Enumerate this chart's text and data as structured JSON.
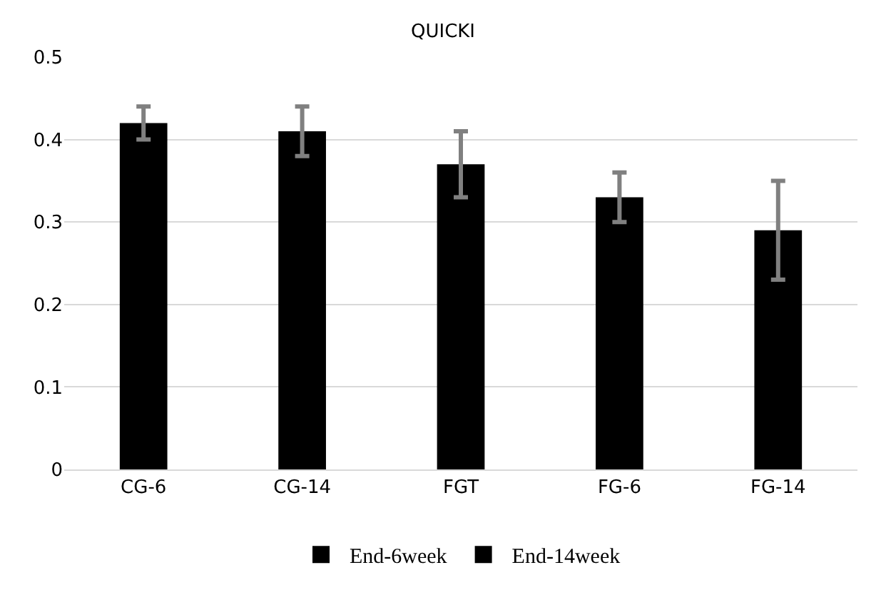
{
  "chart_data": {
    "type": "bar",
    "title": "QUICKI",
    "categories": [
      "CG-6",
      "CG-14",
      "FGT",
      "FG-6",
      "FG-14"
    ],
    "series": [
      {
        "name": "End-6week",
        "color": "#000000",
        "values": [
          0.42,
          null,
          null,
          0.33,
          null
        ],
        "errors": [
          0.02,
          null,
          null,
          0.03,
          null
        ]
      },
      {
        "name": "End-14week",
        "color": "#000000",
        "values": [
          null,
          0.41,
          0.37,
          null,
          0.29
        ],
        "errors": [
          null,
          0.03,
          0.04,
          null,
          0.06
        ]
      }
    ],
    "ylim": [
      0,
      0.5
    ],
    "yticks": [
      0,
      0.1,
      0.2,
      0.3,
      0.4,
      0.5
    ],
    "grid": "y",
    "legend": "bottom"
  }
}
